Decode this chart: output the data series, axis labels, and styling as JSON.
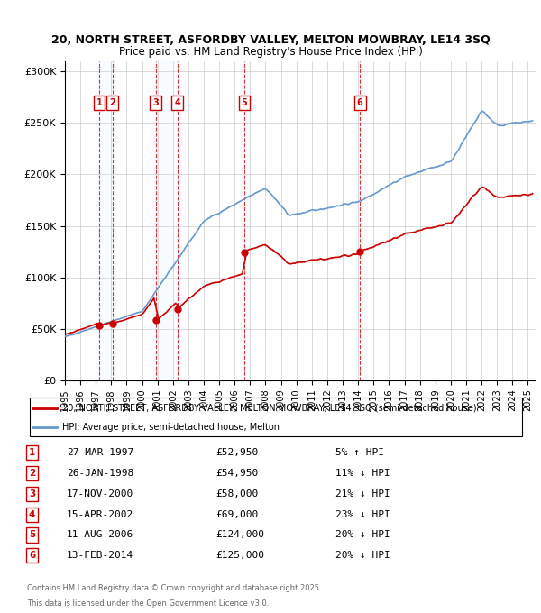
{
  "title_line1": "20, NORTH STREET, ASFORDBY VALLEY, MELTON MOWBRAY, LE14 3SQ",
  "title_line2": "Price paid vs. HM Land Registry's House Price Index (HPI)",
  "ylabel": "",
  "yticks": [
    0,
    50000,
    100000,
    150000,
    200000,
    250000,
    300000
  ],
  "ytick_labels": [
    "£0",
    "£50K",
    "£100K",
    "£150K",
    "£200K",
    "£250K",
    "£300K"
  ],
  "xlim_start": 1995.0,
  "xlim_end": 2025.5,
  "ylim": [
    0,
    310000
  ],
  "transactions": [
    {
      "num": 1,
      "date": "27-MAR-1997",
      "price": 52950,
      "year": 1997.23,
      "pct": "5%",
      "dir": "↑"
    },
    {
      "num": 2,
      "date": "26-JAN-1998",
      "price": 54950,
      "year": 1998.07,
      "pct": "11%",
      "dir": "↓"
    },
    {
      "num": 3,
      "date": "17-NOV-2000",
      "price": 58000,
      "year": 2000.88,
      "pct": "21%",
      "dir": "↓"
    },
    {
      "num": 4,
      "date": "15-APR-2002",
      "price": 69000,
      "year": 2002.29,
      "pct": "23%",
      "dir": "↓"
    },
    {
      "num": 5,
      "date": "11-AUG-2006",
      "price": 124000,
      "year": 2006.62,
      "pct": "20%",
      "dir": "↓"
    },
    {
      "num": 6,
      "date": "13-FEB-2014",
      "price": 125000,
      "year": 2014.12,
      "pct": "20%",
      "dir": "↓"
    }
  ],
  "legend_label_red": "20, NORTH STREET, ASFORDBY VALLEY, MELTON MOWBRAY, LE14 3SQ (semi-detached house)",
  "legend_label_blue": "HPI: Average price, semi-detached house, Melton",
  "footer1": "Contains HM Land Registry data © Crown copyright and database right 2025.",
  "footer2": "This data is licensed under the Open Government Licence v3.0.",
  "red_color": "#cc0000",
  "blue_color": "#6699cc",
  "shade_color": "#ddeeff",
  "vline_color": "#cc0000",
  "box_color": "#cc0000",
  "background_color": "#ffffff",
  "grid_color": "#cccccc"
}
